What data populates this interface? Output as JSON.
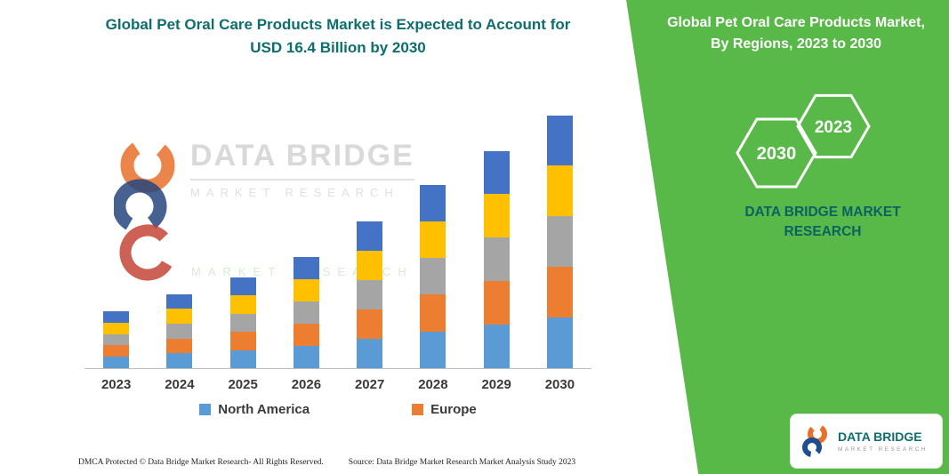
{
  "left": {
    "title_line1": "Global Pet Oral Care Products Market is Expected to Account for",
    "title_line2": "USD 16.4 Billion by 2030",
    "footer_left": "DMCA Protected © Data Bridge Market Research-  All Rights Reserved.",
    "footer_source": "Source: Data Bridge Market Research  Market Analysis Study 2023"
  },
  "watermark": {
    "brand": "DATA BRIDGE",
    "sub": "MARKET  RESEARCH",
    "faint_sub": "MARKET  RESEARCH"
  },
  "right_panel": {
    "bg_color": "#58B948",
    "title_line1": "Global Pet Oral Care Products Market,",
    "title_line2": "By Regions, 2023 to 2030",
    "hexagons": [
      "2030",
      "2023"
    ],
    "brand_line1": "DATA BRIDGE MARKET",
    "brand_line2": "RESEARCH",
    "brand_color": "#0A6363"
  },
  "logo": {
    "name": "DATA BRIDGE",
    "sub": "MARKET RESEARCH"
  },
  "chart_data": {
    "type": "bar",
    "stacked": true,
    "title": "Global Pet Oral Care Products Market, By Regions, 2023 to 2030",
    "unit": "USD Billion",
    "categories": [
      "2023",
      "2024",
      "2025",
      "2026",
      "2027",
      "2028",
      "2029",
      "2030"
    ],
    "totals": [
      3.7,
      4.8,
      5.9,
      7.2,
      9.5,
      11.9,
      14.1,
      16.4
    ],
    "ylim": [
      0,
      17
    ],
    "grid": false,
    "legend_position": "bottom",
    "series": [
      {
        "name": "North America",
        "color": "#5B9BD5",
        "values": [
          0.74,
          0.96,
          1.18,
          1.44,
          1.9,
          2.38,
          2.82,
          3.28
        ]
      },
      {
        "name": "Europe",
        "color": "#ED7D31",
        "values": [
          0.74,
          0.96,
          1.18,
          1.44,
          1.9,
          2.38,
          2.82,
          3.28
        ]
      },
      {
        "name": "",
        "color": "#A5A5A5",
        "values": [
          0.74,
          0.96,
          1.18,
          1.44,
          1.9,
          2.38,
          2.82,
          3.28
        ]
      },
      {
        "name": "",
        "color": "#FFC000",
        "values": [
          0.74,
          0.96,
          1.18,
          1.44,
          1.9,
          2.38,
          2.82,
          3.28
        ]
      },
      {
        "name": "",
        "color": "#4472C4",
        "values": [
          0.74,
          0.96,
          1.18,
          1.44,
          1.9,
          2.38,
          2.82,
          3.28
        ]
      }
    ]
  }
}
